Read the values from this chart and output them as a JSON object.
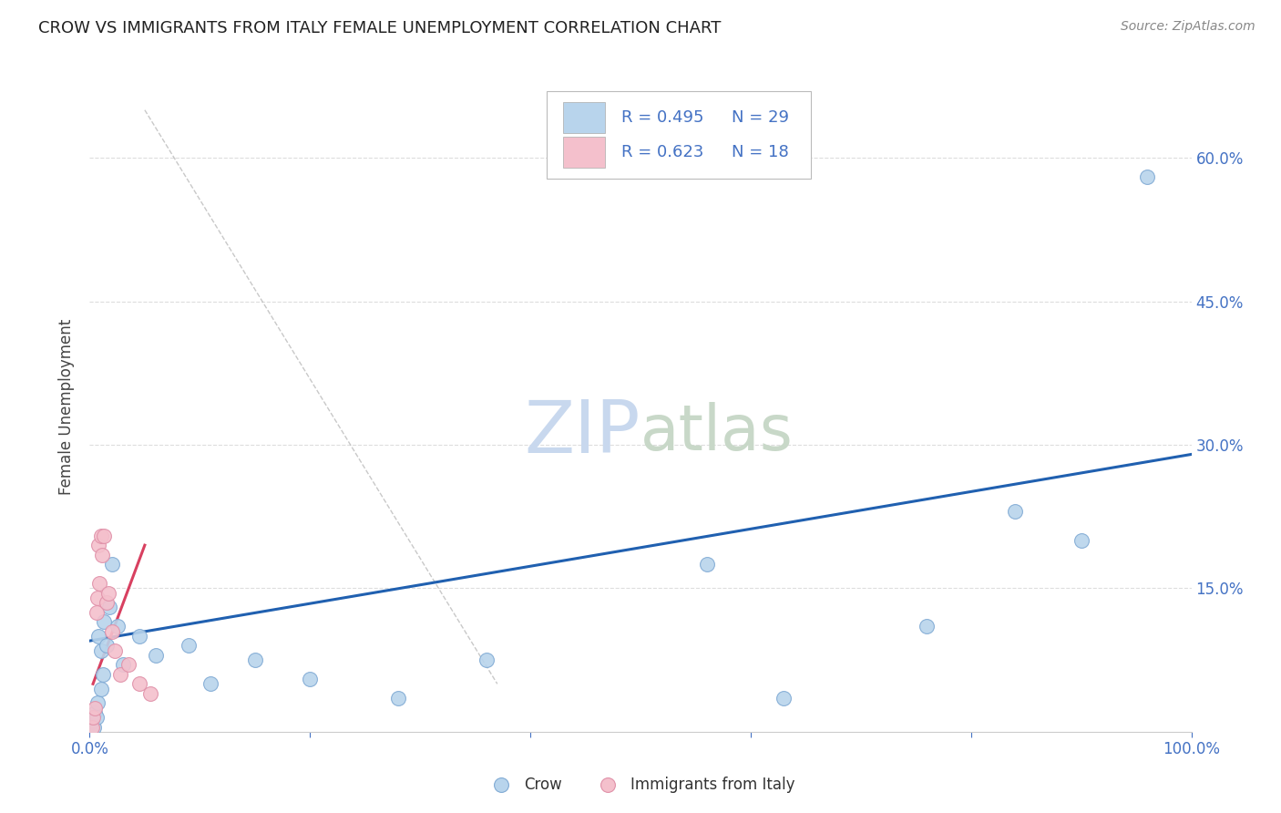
{
  "title": "CROW VS IMMIGRANTS FROM ITALY FEMALE UNEMPLOYMENT CORRELATION CHART",
  "source": "Source: ZipAtlas.com",
  "ylabel_label": "Female Unemployment",
  "legend_entries": [
    {
      "label": "Crow",
      "R": "0.495",
      "N": "29",
      "color": "#b8d4ec"
    },
    {
      "label": "Immigrants from Italy",
      "R": "0.623",
      "N": "18",
      "color": "#f4c0cc"
    }
  ],
  "crow_x": [
    0.2,
    0.4,
    0.5,
    0.6,
    0.7,
    0.8,
    1.0,
    1.0,
    1.2,
    1.3,
    1.5,
    1.8,
    2.0,
    2.5,
    3.0,
    4.5,
    6.0,
    9.0,
    11.0,
    15.0,
    20.0,
    28.0,
    36.0,
    56.0,
    63.0,
    76.0,
    84.0,
    90.0,
    96.0
  ],
  "crow_y": [
    1.0,
    0.5,
    2.0,
    1.5,
    3.0,
    10.0,
    8.5,
    4.5,
    6.0,
    11.5,
    9.0,
    13.0,
    17.5,
    11.0,
    7.0,
    10.0,
    8.0,
    9.0,
    5.0,
    7.5,
    5.5,
    3.5,
    7.5,
    17.5,
    3.5,
    11.0,
    23.0,
    20.0,
    58.0
  ],
  "italy_x": [
    0.2,
    0.3,
    0.5,
    0.6,
    0.7,
    0.8,
    0.9,
    1.0,
    1.1,
    1.3,
    1.5,
    1.7,
    2.0,
    2.3,
    2.8,
    3.5,
    4.5,
    5.5
  ],
  "italy_y": [
    0.5,
    1.5,
    2.5,
    12.5,
    14.0,
    19.5,
    15.5,
    20.5,
    18.5,
    20.5,
    13.5,
    14.5,
    10.5,
    8.5,
    6.0,
    7.0,
    5.0,
    4.0
  ],
  "blue_line_x": [
    0.0,
    100.0
  ],
  "blue_line_y": [
    9.5,
    29.0
  ],
  "pink_line_x": [
    0.3,
    5.0
  ],
  "pink_line_y": [
    5.0,
    19.5
  ],
  "diag_line_x": [
    5.0,
    37.0
  ],
  "diag_line_y": [
    65.0,
    5.0
  ],
  "watermark_zip": "ZIP",
  "watermark_atlas": "atlas",
  "watermark_color_zip": "#c8d8ee",
  "watermark_color_atlas": "#c8d8c8",
  "scatter_size": 130,
  "crow_color": "#b8d4ec",
  "crow_edge": "#80aad4",
  "italy_color": "#f4c0cc",
  "italy_edge": "#e090a8",
  "blue_line_color": "#2060b0",
  "pink_line_color": "#d84060",
  "grid_color": "#dddddd",
  "title_color": "#222222",
  "axis_color": "#4472c4",
  "background": "#ffffff",
  "ylim": [
    0,
    68
  ],
  "xlim": [
    0,
    100
  ],
  "ytick_vals": [
    15.0,
    30.0,
    45.0,
    60.0
  ],
  "xtick_vals": [
    0.0,
    100.0
  ]
}
